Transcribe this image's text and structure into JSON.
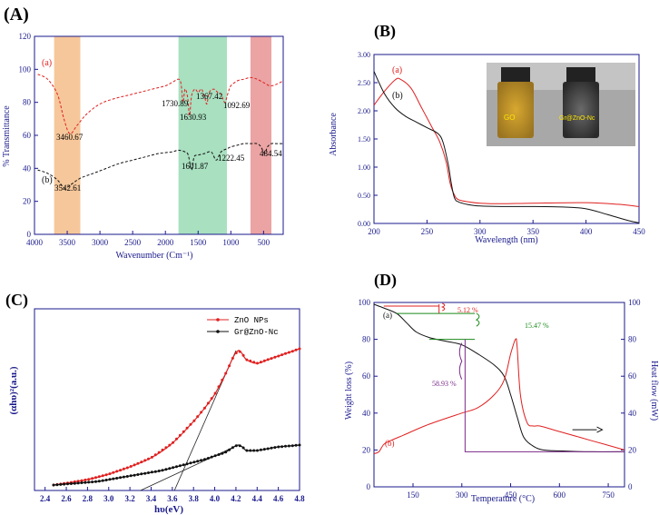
{
  "chart_data": [
    {
      "panel": "(A)",
      "type": "line",
      "xlabel": "Wavenumber (Cm⁻¹)",
      "ylabel": "% Transmittance",
      "xlim": [
        4000,
        200
      ],
      "ylim": [
        0,
        120
      ],
      "xticks": [
        "4000",
        "3500",
        "3000",
        "2500",
        "2000",
        "1500",
        "1000",
        "500"
      ],
      "yticks": [
        "0",
        "20",
        "40",
        "60",
        "80",
        "100",
        "120"
      ],
      "highlight_bands": [
        {
          "from": 3700,
          "to": 3300,
          "color": "#f6c79a"
        },
        {
          "from": 1800,
          "to": 1060,
          "color": "#a8e0c0"
        },
        {
          "from": 700,
          "to": 380,
          "color": "#eba3a3"
        }
      ],
      "series": [
        {
          "name": "(a)",
          "color": "#e02020",
          "style": "dashed",
          "x": [
            3950,
            3800,
            3650,
            3550,
            3460,
            3350,
            3200,
            3000,
            2800,
            2600,
            2400,
            2200,
            2000,
            1900,
            1800,
            1760,
            1731,
            1700,
            1660,
            1631,
            1600,
            1550,
            1500,
            1450,
            1400,
            1367,
            1330,
            1260,
            1200,
            1150,
            1093,
            1040,
            1000,
            900,
            800,
            700,
            600,
            500,
            400,
            300,
            200
          ],
          "y": [
            97,
            94,
            85,
            70,
            61,
            66,
            73,
            79,
            82,
            84,
            86,
            88,
            90,
            92,
            94,
            91,
            80,
            88,
            83,
            72,
            84,
            88,
            86,
            88,
            83,
            79,
            86,
            88,
            86,
            85,
            80,
            86,
            90,
            93,
            94,
            95,
            94,
            92,
            90,
            91,
            93
          ]
        },
        {
          "name": "(b)",
          "color": "#111111",
          "style": "dashed",
          "x": [
            3950,
            3800,
            3650,
            3542,
            3450,
            3300,
            3100,
            2900,
            2700,
            2500,
            2300,
            2100,
            1900,
            1800,
            1700,
            1650,
            1602,
            1560,
            1500,
            1400,
            1300,
            1222,
            1150,
            1050,
            1000,
            900,
            800,
            700,
            600,
            540,
            485,
            440,
            380,
            300,
            200
          ],
          "y": [
            39,
            37,
            33,
            28,
            30,
            34,
            37,
            40,
            43,
            45,
            47,
            49,
            50,
            51,
            50,
            48,
            39,
            47,
            48,
            49,
            50,
            45,
            50,
            52,
            53,
            54,
            55,
            55,
            55,
            53,
            49,
            53,
            55,
            55,
            55
          ]
        }
      ],
      "annotations": [
        "3460.67",
        "1730.89",
        "1630.93",
        "1367.42",
        "1092.69",
        "3542.61",
        "1601.87",
        "1222.45",
        "484.54"
      ]
    },
    {
      "panel": "(B)",
      "type": "line",
      "xlabel": "Wavelength (nm)",
      "ylabel": "Absorbance",
      "xlim": [
        200,
        450
      ],
      "ylim": [
        0,
        3.0
      ],
      "xticks": [
        "200",
        "250",
        "300",
        "350",
        "400",
        "450"
      ],
      "yticks": [
        "0.00",
        "0.50",
        "1.00",
        "1.50",
        "2.00",
        "2.50",
        "3.00"
      ],
      "series": [
        {
          "name": "(a)",
          "color": "#e02020",
          "x": [
            200,
            210,
            220,
            225,
            235,
            245,
            255,
            262,
            268,
            272,
            276,
            280,
            290,
            300,
            320,
            350,
            400,
            430,
            450
          ],
          "y": [
            2.1,
            2.35,
            2.55,
            2.56,
            2.4,
            2.05,
            1.7,
            1.45,
            1.1,
            0.7,
            0.5,
            0.42,
            0.38,
            0.36,
            0.35,
            0.36,
            0.37,
            0.34,
            0.3
          ]
        },
        {
          "name": "(b)",
          "color": "#111111",
          "x": [
            200,
            210,
            220,
            230,
            240,
            250,
            260,
            265,
            270,
            273,
            276,
            280,
            290,
            300,
            320,
            350,
            380,
            400,
            420,
            440,
            450
          ],
          "y": [
            2.7,
            2.3,
            2.05,
            1.9,
            1.8,
            1.7,
            1.6,
            1.45,
            1.05,
            0.7,
            0.45,
            0.38,
            0.33,
            0.31,
            0.3,
            0.3,
            0.29,
            0.26,
            0.16,
            0.05,
            0.01
          ]
        }
      ],
      "inset_labels": [
        "GO",
        "Gr@ZnO-Nc"
      ]
    },
    {
      "panel": "(C)",
      "type": "scatter",
      "xlabel": "hυ(eV)",
      "ylabel": "(αhυ)²(a.u.)",
      "xlim": [
        2.3,
        4.8
      ],
      "ylim": [
        0,
        1
      ],
      "xticks": [
        "2.4",
        "2.6",
        "2.8",
        "3.0",
        "3.2",
        "3.4",
        "3.6",
        "3.8",
        "4.0",
        "4.2",
        "4.4",
        "4.6",
        "4.8"
      ],
      "series": [
        {
          "name": "ZnO NPs",
          "color": "#e02020",
          "x": [
            2.48,
            2.6,
            2.8,
            3.0,
            3.2,
            3.4,
            3.6,
            3.8,
            3.9,
            4.0,
            4.1,
            4.18,
            4.22,
            4.25,
            4.3,
            4.4,
            4.5,
            4.6,
            4.7,
            4.8
          ],
          "y": [
            0.03,
            0.04,
            0.06,
            0.09,
            0.13,
            0.18,
            0.26,
            0.38,
            0.45,
            0.53,
            0.64,
            0.74,
            0.77,
            0.76,
            0.72,
            0.7,
            0.72,
            0.74,
            0.76,
            0.78
          ]
        },
        {
          "name": "Gr@ZnO-Nc",
          "color": "#111111",
          "x": [
            2.48,
            2.7,
            2.9,
            3.1,
            3.3,
            3.5,
            3.7,
            3.9,
            4.0,
            4.1,
            4.18,
            4.22,
            4.26,
            4.3,
            4.4,
            4.5,
            4.6,
            4.7,
            4.8
          ],
          "y": [
            0.03,
            0.04,
            0.05,
            0.07,
            0.09,
            0.11,
            0.14,
            0.17,
            0.19,
            0.21,
            0.24,
            0.25,
            0.24,
            0.22,
            0.22,
            0.23,
            0.24,
            0.245,
            0.25
          ]
        }
      ],
      "tangent_lines": [
        {
          "x": [
            3.62,
            4.2
          ],
          "y": [
            0.0,
            0.77
          ]
        },
        {
          "x": [
            3.3,
            4.22
          ],
          "y": [
            0.0,
            0.25
          ]
        }
      ]
    },
    {
      "panel": "(D)",
      "type": "line",
      "xlabel": "Temperature (°C)",
      "ylabel": "Weight loss (%)",
      "y2label": "Heat flow (mW)",
      "xlim": [
        30,
        800
      ],
      "ylim": [
        0,
        100
      ],
      "xticks": [
        "150",
        "300",
        "450",
        "600",
        "750"
      ],
      "yticks": [
        "0",
        "20",
        "40",
        "60",
        "80",
        "100"
      ],
      "series": [
        {
          "name": "(a)",
          "color": "#111111",
          "x": [
            30,
            60,
            100,
            130,
            160,
            200,
            250,
            300,
            350,
            400,
            430,
            450,
            470,
            490,
            520,
            550,
            600,
            700,
            800
          ],
          "y": [
            99,
            97,
            94,
            89,
            84,
            81,
            79,
            77,
            72,
            66,
            60,
            50,
            38,
            27,
            22,
            20,
            19.5,
            19,
            19
          ]
        },
        {
          "name": "(b)",
          "color": "#e02020",
          "x": [
            30,
            45,
            60,
            80,
            120,
            200,
            300,
            350,
            400,
            430,
            450,
            465,
            470,
            480,
            500,
            520,
            540,
            600,
            700,
            800
          ],
          "y": [
            18,
            19,
            23,
            25,
            28,
            34,
            40,
            43,
            50,
            58,
            72,
            80,
            76,
            50,
            35,
            33,
            33,
            30,
            25,
            20
          ]
        }
      ],
      "annotations": [
        "5.12 %",
        "15.47 %",
        "58.93 %"
      ]
    }
  ],
  "panel_labels": {
    "a": "(A)",
    "b": "(B)",
    "c": "(C)",
    "d": "(D)"
  }
}
